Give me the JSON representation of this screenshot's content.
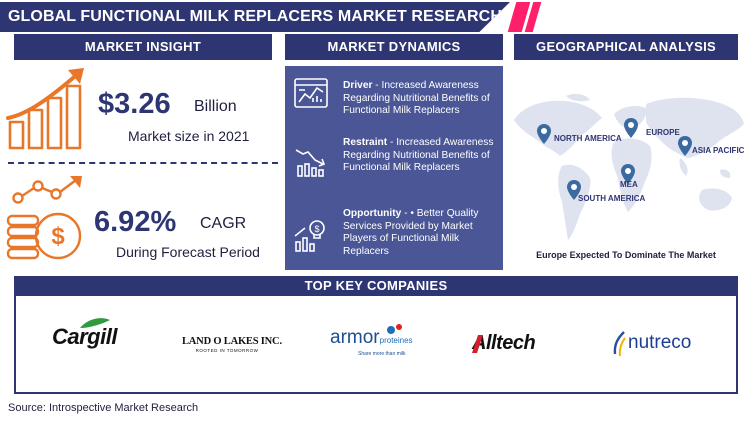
{
  "header": {
    "title": "GLOBAL FUNCTIONAL MILK REPLACERS MARKET RESEARCH REPORT"
  },
  "colors": {
    "primary": "#2e3573",
    "panel": "#4a5695",
    "accent_orange": "#e8772a",
    "accent_pink": "#ff1f6b"
  },
  "insight": {
    "heading": "MARKET INSIGHT",
    "market_size_value": "$3.26",
    "market_size_unit": "Billion",
    "market_size_caption": "Market size in 2021",
    "cagr_value": "6.92%",
    "cagr_unit": "CAGR",
    "cagr_caption": "During Forecast Period",
    "icons": [
      "growth-bar-chart-icon",
      "money-stack-growth-icon"
    ]
  },
  "dynamics": {
    "heading": "MARKET DYNAMICS",
    "items": [
      {
        "label": "Driver",
        "text": " - Increased Awareness Regarding Nutritional Benefits of Functional Milk Replacers",
        "icon": "dashboard-chart-icon"
      },
      {
        "label": "Restraint",
        "text": " - Increased Awareness Regarding Nutritional Benefits of Functional Milk Replacers",
        "icon": "declining-chart-icon"
      },
      {
        "label": "Opportunity",
        "text": " - • Better Quality Services Provided by Market Players of Functional Milk Replacers",
        "icon": "idea-growth-icon"
      }
    ]
  },
  "geography": {
    "heading": "GEOGRAPHICAL ANALYSIS",
    "regions": [
      "NORTH AMERICA",
      "EUROPE",
      "ASIA PACIFIC",
      "MEA",
      "SOUTH AMERICA"
    ],
    "caption": "Europe Expected To Dominate The Market"
  },
  "companies": {
    "heading": "TOP KEY COMPANIES",
    "logos": [
      {
        "name": "Cargill"
      },
      {
        "name": "LAND O LAKES INC.",
        "tagline": "ROOTED IN TOMORROW"
      },
      {
        "name": "armor",
        "suffix": "proteines",
        "tagline": "Share more than milk"
      },
      {
        "name": "Alltech"
      },
      {
        "name": "nutreco"
      }
    ]
  },
  "footer": {
    "source": "Source: Introspective Market Research"
  }
}
